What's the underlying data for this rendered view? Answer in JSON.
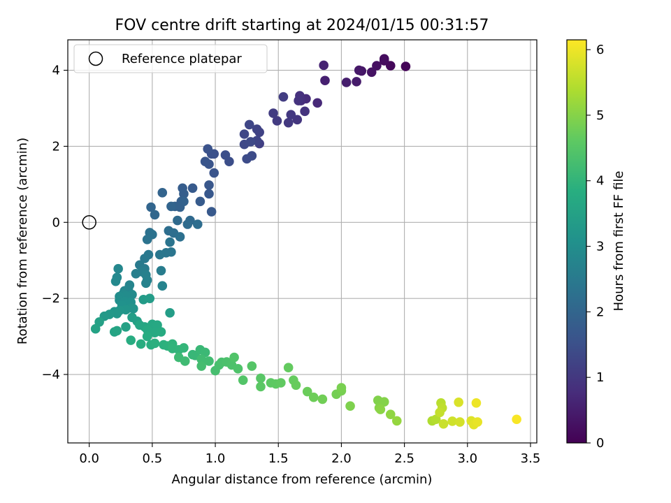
{
  "chart_data": {
    "type": "scatter",
    "title": "FOV centre drift starting at 2024/01/15 00:31:57",
    "xlabel": "Angular distance from reference (arcmin)",
    "ylabel": "Rotation from reference (arcmin)",
    "xlim": [
      -0.17,
      3.55
    ],
    "ylim": [
      -5.8,
      4.8
    ],
    "xticks": [
      0.0,
      0.5,
      1.0,
      1.5,
      2.0,
      2.5,
      3.0,
      3.5
    ],
    "xticklabels": [
      "0.0",
      "0.5",
      "1.0",
      "1.5",
      "2.0",
      "2.5",
      "3.0",
      "3.5"
    ],
    "yticks": [
      -4,
      -2,
      0,
      2,
      4
    ],
    "yticklabels": [
      "−4",
      "−2",
      "0",
      "2",
      "4"
    ],
    "grid": true,
    "legend": {
      "position": "top-left",
      "entries": [
        {
          "label": "Reference platepar",
          "marker": "open-circle"
        }
      ]
    },
    "reference_point": {
      "x": 0.0,
      "y": 0.0
    },
    "colorbar": {
      "label": "Hours from first FF file",
      "colormap": "viridis",
      "range": [
        0,
        6.15
      ],
      "ticks": [
        0,
        1,
        2,
        3,
        4,
        5,
        6
      ],
      "ticklabels": [
        "0",
        "1",
        "2",
        "3",
        "4",
        "5",
        "6"
      ]
    },
    "points": [
      [
        2.51,
        4.1,
        0.05
      ],
      [
        2.39,
        4.12,
        0.1
      ],
      [
        2.34,
        4.25,
        0.15
      ],
      [
        2.34,
        4.3,
        0.2
      ],
      [
        2.28,
        4.12,
        0.25
      ],
      [
        2.24,
        3.95,
        0.3
      ],
      [
        2.16,
        3.98,
        0.35
      ],
      [
        2.14,
        4.0,
        0.4
      ],
      [
        2.12,
        3.7,
        0.45
      ],
      [
        2.04,
        3.68,
        0.5
      ],
      [
        1.87,
        3.73,
        0.55
      ],
      [
        1.86,
        4.13,
        0.6
      ],
      [
        1.81,
        3.14,
        0.7
      ],
      [
        1.72,
        3.25,
        0.75
      ],
      [
        1.68,
        3.2,
        0.8
      ],
      [
        1.67,
        3.33,
        0.85
      ],
      [
        1.66,
        3.2,
        0.9
      ],
      [
        1.71,
        2.92,
        0.92
      ],
      [
        1.65,
        2.7,
        0.95
      ],
      [
        1.6,
        2.83,
        1.0
      ],
      [
        1.58,
        2.62,
        1.02
      ],
      [
        1.49,
        2.67,
        1.05
      ],
      [
        1.46,
        2.87,
        1.08
      ],
      [
        1.54,
        3.3,
        1.1
      ],
      [
        1.35,
        2.07,
        1.15
      ],
      [
        1.35,
        2.37,
        1.2
      ],
      [
        1.33,
        2.45,
        1.22
      ],
      [
        1.33,
        2.15,
        1.25
      ],
      [
        1.27,
        2.57,
        1.28
      ],
      [
        1.23,
        2.32,
        1.3
      ],
      [
        1.23,
        2.05,
        1.33
      ],
      [
        1.28,
        2.12,
        1.36
      ],
      [
        1.29,
        1.75,
        1.4
      ],
      [
        1.25,
        1.67,
        1.42
      ],
      [
        1.11,
        1.6,
        1.45
      ],
      [
        1.08,
        1.77,
        1.48
      ],
      [
        0.99,
        1.8,
        1.5
      ],
      [
        0.97,
        1.8,
        1.52
      ],
      [
        0.94,
        1.93,
        1.55
      ],
      [
        0.99,
        1.3,
        1.58
      ],
      [
        0.95,
        1.53,
        1.6
      ],
      [
        0.92,
        1.6,
        1.62
      ],
      [
        0.95,
        0.98,
        1.65
      ],
      [
        0.95,
        0.75,
        1.68
      ],
      [
        0.97,
        0.28,
        1.7
      ],
      [
        0.82,
        0.9,
        1.73
      ],
      [
        0.88,
        0.55,
        1.76
      ],
      [
        0.74,
        0.9,
        1.8
      ],
      [
        0.75,
        0.75,
        1.82
      ],
      [
        0.73,
        0.55,
        1.85
      ],
      [
        0.68,
        0.42,
        1.88
      ],
      [
        0.72,
        0.4,
        1.9
      ],
      [
        0.75,
        0.55,
        1.93
      ],
      [
        0.58,
        0.78,
        1.96
      ],
      [
        0.65,
        0.42,
        1.98
      ],
      [
        0.49,
        0.4,
        2.0
      ],
      [
        0.52,
        0.2,
        2.05
      ],
      [
        0.8,
        0.05,
        2.1
      ],
      [
        0.7,
        0.05,
        2.12
      ],
      [
        0.78,
        -0.05,
        2.15
      ],
      [
        0.86,
        -0.05,
        2.18
      ],
      [
        0.63,
        -0.22,
        2.2
      ],
      [
        0.67,
        -0.28,
        2.22
      ],
      [
        0.72,
        -0.38,
        2.25
      ],
      [
        0.48,
        -0.27,
        2.28
      ],
      [
        0.5,
        -0.32,
        2.3
      ],
      [
        0.46,
        -0.45,
        2.33
      ],
      [
        0.64,
        -0.52,
        2.35
      ],
      [
        0.65,
        -0.78,
        2.38
      ],
      [
        0.61,
        -0.8,
        2.4
      ],
      [
        0.56,
        -0.85,
        2.42
      ],
      [
        0.47,
        -0.85,
        2.45
      ],
      [
        0.44,
        -0.95,
        2.48
      ],
      [
        0.4,
        -1.12,
        2.5
      ],
      [
        0.44,
        -1.22,
        2.53
      ],
      [
        0.57,
        -1.27,
        2.56
      ],
      [
        0.42,
        -1.3,
        2.6
      ],
      [
        0.37,
        -1.35,
        2.62
      ],
      [
        0.45,
        -1.38,
        2.65
      ],
      [
        0.46,
        -1.52,
        2.68
      ],
      [
        0.45,
        -1.6,
        2.7
      ],
      [
        0.58,
        -1.67,
        2.72
      ],
      [
        0.32,
        -1.65,
        2.75
      ],
      [
        0.31,
        -1.75,
        2.78
      ],
      [
        0.28,
        -1.8,
        2.8
      ],
      [
        0.23,
        -1.22,
        2.82
      ],
      [
        0.22,
        -1.45,
        2.85
      ],
      [
        0.21,
        -1.55,
        2.88
      ],
      [
        0.27,
        -1.88,
        2.9
      ],
      [
        0.34,
        -1.9,
        2.93
      ],
      [
        0.29,
        -1.93,
        2.96
      ],
      [
        0.24,
        -1.95,
        2.98
      ],
      [
        0.24,
        -2.05,
        3.0
      ],
      [
        0.28,
        -2.08,
        3.03
      ],
      [
        0.33,
        -2.1,
        3.05
      ],
      [
        0.3,
        -2.15,
        3.08
      ],
      [
        0.26,
        -2.18,
        3.1
      ],
      [
        0.33,
        -2.25,
        3.13
      ],
      [
        0.35,
        -2.27,
        3.15
      ],
      [
        0.29,
        -2.3,
        3.18
      ],
      [
        0.24,
        -2.32,
        3.2
      ],
      [
        0.2,
        -2.35,
        3.22
      ],
      [
        0.22,
        -2.4,
        3.24
      ],
      [
        0.16,
        -2.42,
        3.27
      ],
      [
        0.12,
        -2.47,
        3.3
      ],
      [
        0.43,
        -2.03,
        3.33
      ],
      [
        0.48,
        -2.0,
        3.36
      ],
      [
        0.64,
        -2.38,
        3.4
      ],
      [
        0.34,
        -2.5,
        3.42
      ],
      [
        0.38,
        -2.6,
        3.45
      ],
      [
        0.08,
        -2.62,
        3.48
      ],
      [
        0.29,
        -2.75,
        3.5
      ],
      [
        0.05,
        -2.8,
        3.52
      ],
      [
        0.2,
        -2.88,
        3.55
      ],
      [
        0.22,
        -2.85,
        3.58
      ],
      [
        0.4,
        -2.7,
        3.6
      ],
      [
        0.44,
        -2.75,
        3.62
      ],
      [
        0.5,
        -2.68,
        3.65
      ],
      [
        0.54,
        -2.7,
        3.68
      ],
      [
        0.46,
        -2.82,
        3.7
      ],
      [
        0.52,
        -2.9,
        3.72
      ],
      [
        0.57,
        -2.88,
        3.75
      ],
      [
        0.46,
        -3.0,
        3.78
      ],
      [
        0.33,
        -3.1,
        3.8
      ],
      [
        0.41,
        -3.2,
        3.82
      ],
      [
        0.49,
        -3.22,
        3.85
      ],
      [
        0.52,
        -3.18,
        3.88
      ],
      [
        0.59,
        -3.22,
        3.9
      ],
      [
        0.62,
        -3.25,
        3.93
      ],
      [
        0.66,
        -3.2,
        3.96
      ],
      [
        0.66,
        -3.32,
        3.98
      ],
      [
        0.71,
        -3.35,
        4.0
      ],
      [
        0.75,
        -3.3,
        4.03
      ],
      [
        0.82,
        -3.48,
        4.06
      ],
      [
        0.84,
        -3.5,
        4.08
      ],
      [
        0.88,
        -3.35,
        4.1
      ],
      [
        0.92,
        -3.42,
        4.13
      ],
      [
        0.71,
        -3.55,
        4.15
      ],
      [
        0.76,
        -3.65,
        4.18
      ],
      [
        0.89,
        -3.6,
        4.2
      ],
      [
        0.95,
        -3.65,
        4.22
      ],
      [
        0.89,
        -3.78,
        4.25
      ],
      [
        1.0,
        -3.9,
        4.28
      ],
      [
        1.03,
        -3.75,
        4.3
      ],
      [
        1.05,
        -3.68,
        4.33
      ],
      [
        1.09,
        -3.67,
        4.36
      ],
      [
        1.13,
        -3.75,
        4.38
      ],
      [
        1.18,
        -3.85,
        4.4
      ],
      [
        1.15,
        -3.55,
        4.43
      ],
      [
        1.22,
        -4.15,
        4.46
      ],
      [
        1.29,
        -3.78,
        4.48
      ],
      [
        1.36,
        -4.1,
        4.52
      ],
      [
        1.36,
        -4.32,
        4.55
      ],
      [
        1.44,
        -4.22,
        4.58
      ],
      [
        1.48,
        -4.25,
        4.6
      ],
      [
        1.52,
        -4.22,
        4.63
      ],
      [
        1.58,
        -3.82,
        4.66
      ],
      [
        1.62,
        -4.15,
        4.68
      ],
      [
        1.64,
        -4.28,
        4.7
      ],
      [
        1.73,
        -4.45,
        4.73
      ],
      [
        1.78,
        -4.6,
        4.76
      ],
      [
        1.85,
        -4.65,
        4.8
      ],
      [
        1.96,
        -4.52,
        4.83
      ],
      [
        2.0,
        -4.43,
        4.86
      ],
      [
        2.0,
        -4.35,
        4.88
      ],
      [
        2.07,
        -4.83,
        4.92
      ],
      [
        2.29,
        -4.68,
        4.95
      ],
      [
        2.34,
        -4.72,
        4.98
      ],
      [
        2.3,
        -4.88,
        5.0
      ],
      [
        2.31,
        -4.92,
        5.05
      ],
      [
        2.39,
        -5.05,
        5.1
      ],
      [
        2.44,
        -5.22,
        5.15
      ],
      [
        2.72,
        -5.22,
        5.4
      ],
      [
        2.75,
        -5.18,
        5.45
      ],
      [
        2.79,
        -4.75,
        5.5
      ],
      [
        2.8,
        -4.88,
        5.55
      ],
      [
        2.78,
        -5.0,
        5.6
      ],
      [
        2.81,
        -5.3,
        5.65
      ],
      [
        2.88,
        -5.23,
        5.7
      ],
      [
        2.94,
        -5.25,
        5.75
      ],
      [
        2.93,
        -4.73,
        5.8
      ],
      [
        3.03,
        -5.22,
        5.85
      ],
      [
        3.05,
        -5.32,
        5.9
      ],
      [
        3.08,
        -5.25,
        5.95
      ],
      [
        3.07,
        -4.75,
        6.0
      ],
      [
        3.39,
        -5.18,
        6.1
      ]
    ]
  }
}
